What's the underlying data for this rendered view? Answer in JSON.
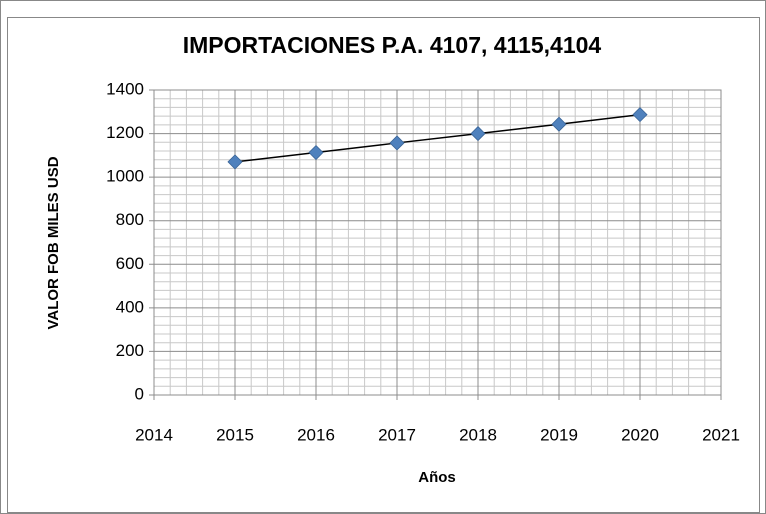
{
  "chart_data": {
    "type": "scatter",
    "title": "IMPORTACIONES P.A. 4107, 4115,4104",
    "x_label": "Años",
    "y_label": "VALOR FOB MILES USD",
    "x": [
      2015,
      2016,
      2017,
      2018,
      2019,
      2020
    ],
    "values": [
      1070,
      1113,
      1157,
      1200,
      1243,
      1287
    ],
    "color": "#4f81bd",
    "line_color": "#000000",
    "xlim": [
      2014,
      2021
    ],
    "xticks": [
      2014,
      2015,
      2016,
      2017,
      2018,
      2019,
      2020,
      2021
    ],
    "ylim": [
      0,
      1400
    ],
    "yticks": [
      0,
      200,
      400,
      600,
      800,
      1000,
      1200,
      1400
    ],
    "grid": true,
    "minor_grid": 5
  }
}
